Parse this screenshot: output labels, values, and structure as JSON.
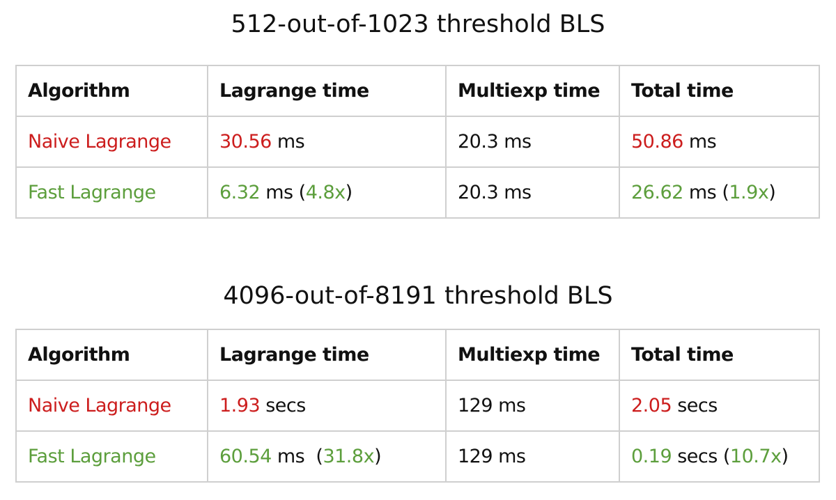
{
  "tables": [
    {
      "title": "512-out-of-1023 threshold BLS",
      "header": [
        "Algorithm",
        "Lagrange time",
        "Multiexp time",
        "Total time"
      ],
      "rows": [
        [
          [
            {
              "text": "Naive Lagrange",
              "color": "#cc1d1d"
            }
          ],
          [
            {
              "text": "30.56",
              "color": "#cc1d1d"
            },
            {
              "text": " ms"
            }
          ],
          [
            {
              "text": "20.3 ms"
            }
          ],
          [
            {
              "text": "50.86",
              "color": "#cc1d1d"
            },
            {
              "text": " ms"
            }
          ]
        ],
        [
          [
            {
              "text": "Fast Lagrange",
              "color": "#5c9e3c"
            }
          ],
          [
            {
              "text": "6.32",
              "color": "#5c9e3c"
            },
            {
              "text": " ms ("
            },
            {
              "text": "4.8x",
              "color": "#5c9e3c"
            },
            {
              "text": ")"
            }
          ],
          [
            {
              "text": "20.3 ms"
            }
          ],
          [
            {
              "text": "26.62",
              "color": "#5c9e3c"
            },
            {
              "text": " ms ("
            },
            {
              "text": "1.9x",
              "color": "#5c9e3c"
            },
            {
              "text": ")"
            }
          ]
        ]
      ]
    },
    {
      "title": "4096-out-of-8191 threshold BLS",
      "header": [
        "Algorithm",
        "Lagrange time",
        "Multiexp time",
        "Total time"
      ],
      "rows": [
        [
          [
            {
              "text": "Naive Lagrange",
              "color": "#cc1d1d"
            }
          ],
          [
            {
              "text": "1.93",
              "color": "#cc1d1d"
            },
            {
              "text": " secs"
            }
          ],
          [
            {
              "text": "129 ms"
            }
          ],
          [
            {
              "text": "2.05",
              "color": "#cc1d1d"
            },
            {
              "text": " secs"
            }
          ]
        ],
        [
          [
            {
              "text": "Fast Lagrange",
              "color": "#5c9e3c"
            }
          ],
          [
            {
              "text": "60.54",
              "color": "#5c9e3c"
            },
            {
              "text": " ms  ("
            },
            {
              "text": "31.8x",
              "color": "#5c9e3c"
            },
            {
              "text": ")"
            }
          ],
          [
            {
              "text": "129 ms"
            }
          ],
          [
            {
              "text": "0.19",
              "color": "#5c9e3c"
            },
            {
              "text": " secs ("
            },
            {
              "text": "10.7x",
              "color": "#5c9e3c"
            },
            {
              "text": ")"
            }
          ]
        ]
      ]
    }
  ]
}
